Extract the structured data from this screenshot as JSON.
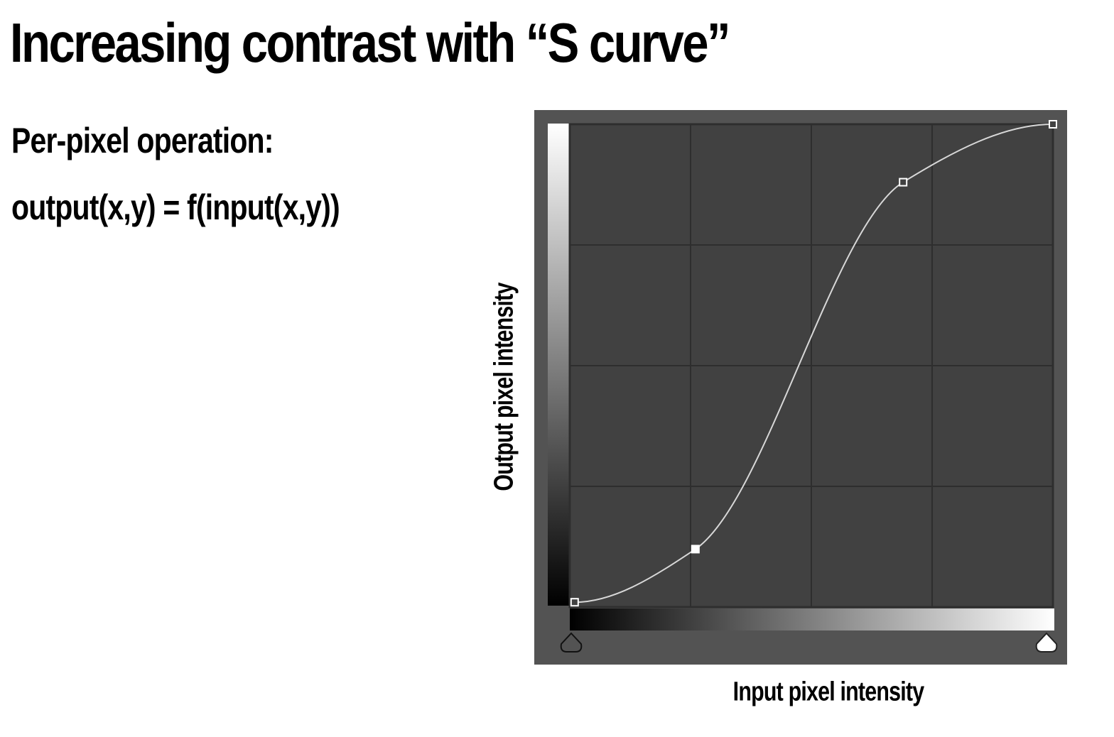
{
  "slide": {
    "title": "Increasing contrast with “S curve”",
    "lines": [
      "Per-pixel operation:",
      "output(x,y) = f(input(x,y))"
    ]
  },
  "curves_panel": {
    "x_label": "Input pixel intensity",
    "y_label": "Output pixel intensity",
    "colors": {
      "panel_background": "#535353",
      "grid_background": "#414141",
      "grid_lines": "#2e2e2e",
      "curve": "#d8d8d8",
      "control_point": "#ffffff"
    },
    "grid_divisions": 4,
    "control_points": [
      {
        "input": 0.01,
        "output": 0.01,
        "selected": false
      },
      {
        "input": 0.26,
        "output": 0.12,
        "selected": true
      },
      {
        "input": 0.69,
        "output": 0.88,
        "selected": false
      },
      {
        "input": 1.0,
        "output": 1.0,
        "selected": false
      }
    ]
  }
}
